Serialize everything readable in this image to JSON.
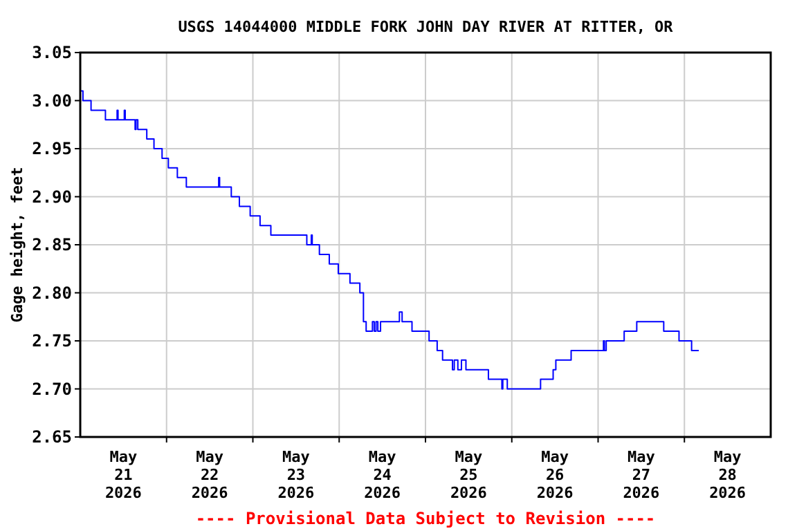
{
  "chart_data": {
    "type": "step",
    "title": "USGS 14044000 MIDDLE FORK JOHN DAY RIVER AT RITTER, OR",
    "ylabel": "Gage height, feet",
    "annotations": [
      "---- Provisional Data Subject to Revision ----"
    ],
    "xlim": [
      "2026-05-21T00:00",
      "2026-05-29T00:00"
    ],
    "ylim": [
      2.65,
      3.05
    ],
    "yticks": [
      {
        "value": 2.65,
        "label": "2.65"
      },
      {
        "value": 2.7,
        "label": "2.70"
      },
      {
        "value": 2.75,
        "label": "2.75"
      },
      {
        "value": 2.8,
        "label": "2.80"
      },
      {
        "value": 2.85,
        "label": "2.85"
      },
      {
        "value": 2.9,
        "label": "2.90"
      },
      {
        "value": 2.95,
        "label": "2.95"
      },
      {
        "value": 3.0,
        "label": "3.00"
      },
      {
        "value": 3.05,
        "label": "3.05"
      }
    ],
    "xticks": [
      {
        "value": "2026-05-21T12:00",
        "label": "May\n21\n2026"
      },
      {
        "value": "2026-05-22T00:00",
        "label": null
      },
      {
        "value": "2026-05-22T12:00",
        "label": "May\n22\n2026"
      },
      {
        "value": "2026-05-23T00:00",
        "label": null
      },
      {
        "value": "2026-05-23T12:00",
        "label": "May\n23\n2026"
      },
      {
        "value": "2026-05-24T00:00",
        "label": null
      },
      {
        "value": "2026-05-24T12:00",
        "label": "May\n24\n2026"
      },
      {
        "value": "2026-05-25T00:00",
        "label": null
      },
      {
        "value": "2026-05-25T12:00",
        "label": "May\n25\n2026"
      },
      {
        "value": "2026-05-26T00:00",
        "label": null
      },
      {
        "value": "2026-05-26T12:00",
        "label": "May\n26\n2026"
      },
      {
        "value": "2026-05-27T00:00",
        "label": null
      },
      {
        "value": "2026-05-27T12:00",
        "label": "May\n27\n2026"
      },
      {
        "value": "2026-05-28T00:00",
        "label": null
      },
      {
        "value": "2026-05-28T12:00",
        "label": "May\n28\n2026"
      }
    ],
    "grid": true,
    "x": [
      "2026-05-21T00:00",
      "2026-05-21T00:45",
      "2026-05-21T03:00",
      "2026-05-21T07:00",
      "2026-05-21T10:15",
      "2026-05-21T10:30",
      "2026-05-21T12:15",
      "2026-05-21T12:30",
      "2026-05-21T15:15",
      "2026-05-21T15:30",
      "2026-05-21T16:00",
      "2026-05-21T18:30",
      "2026-05-21T20:30",
      "2026-05-21T22:45",
      "2026-05-22T00:30",
      "2026-05-22T03:00",
      "2026-05-22T05:30",
      "2026-05-22T14:30",
      "2026-05-22T14:45",
      "2026-05-22T18:00",
      "2026-05-22T20:15",
      "2026-05-22T23:15",
      "2026-05-23T02:00",
      "2026-05-23T05:00",
      "2026-05-23T15:00",
      "2026-05-23T16:15",
      "2026-05-23T16:30",
      "2026-05-23T18:30",
      "2026-05-23T21:15",
      "2026-05-23T23:45",
      "2026-05-24T03:00",
      "2026-05-24T05:45",
      "2026-05-24T06:45",
      "2026-05-24T07:30",
      "2026-05-24T09:15",
      "2026-05-24T09:45",
      "2026-05-24T10:15",
      "2026-05-24T10:45",
      "2026-05-24T11:30",
      "2026-05-24T16:45",
      "2026-05-24T17:30",
      "2026-05-24T20:15",
      "2026-05-25T01:00",
      "2026-05-25T03:15",
      "2026-05-25T04:45",
      "2026-05-25T07:30",
      "2026-05-25T08:00",
      "2026-05-25T09:00",
      "2026-05-25T10:00",
      "2026-05-25T11:15",
      "2026-05-25T17:30",
      "2026-05-25T21:15",
      "2026-05-25T21:30",
      "2026-05-25T22:45",
      "2026-05-26T08:00",
      "2026-05-26T11:30",
      "2026-05-26T12:15",
      "2026-05-26T16:30",
      "2026-05-27T01:30",
      "2026-05-27T01:45",
      "2026-05-27T02:15",
      "2026-05-27T07:15",
      "2026-05-27T10:45",
      "2026-05-27T18:15",
      "2026-05-27T22:30",
      "2026-05-28T02:00",
      "2026-05-28T04:00"
    ],
    "series": [
      {
        "color": "#0000ff",
        "values": [
          3.01,
          3.0,
          2.99,
          2.98,
          2.99,
          2.98,
          2.99,
          2.98,
          2.97,
          2.98,
          2.97,
          2.96,
          2.95,
          2.94,
          2.93,
          2.92,
          2.91,
          2.92,
          2.91,
          2.9,
          2.89,
          2.88,
          2.87,
          2.86,
          2.85,
          2.86,
          2.85,
          2.84,
          2.83,
          2.82,
          2.81,
          2.8,
          2.77,
          2.76,
          2.77,
          2.76,
          2.77,
          2.76,
          2.77,
          2.78,
          2.77,
          2.76,
          2.75,
          2.74,
          2.73,
          2.72,
          2.73,
          2.72,
          2.73,
          2.72,
          2.71,
          2.7,
          2.71,
          2.7,
          2.71,
          2.72,
          2.73,
          2.74,
          2.75,
          2.74,
          2.75,
          2.76,
          2.77,
          2.76,
          2.75,
          2.74,
          2.74
        ]
      }
    ]
  }
}
